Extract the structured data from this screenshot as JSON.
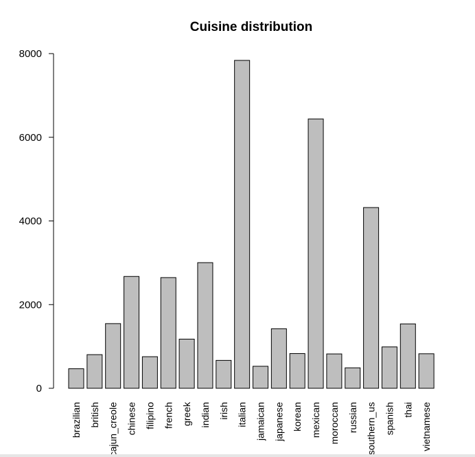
{
  "chart_data": {
    "type": "bar",
    "title": "Cuisine distribution",
    "xlabel": "",
    "ylabel": "",
    "categories": [
      "brazilian",
      "british",
      "cajun_creole",
      "chinese",
      "filipino",
      "french",
      "greek",
      "indian",
      "irish",
      "italian",
      "jamaican",
      "japanese",
      "korean",
      "mexican",
      "moroccan",
      "russian",
      "southern_us",
      "spanish",
      "thai",
      "vietnamese"
    ],
    "values": [
      467,
      804,
      1546,
      2673,
      755,
      2646,
      1175,
      3003,
      667,
      7838,
      526,
      1423,
      830,
      6438,
      821,
      489,
      4320,
      989,
      1539,
      825
    ],
    "ylim": [
      0,
      8000
    ],
    "yticks": [
      0,
      2000,
      4000,
      6000,
      8000
    ],
    "bar_color": "#bebebe",
    "grid": false,
    "legend": "none"
  }
}
